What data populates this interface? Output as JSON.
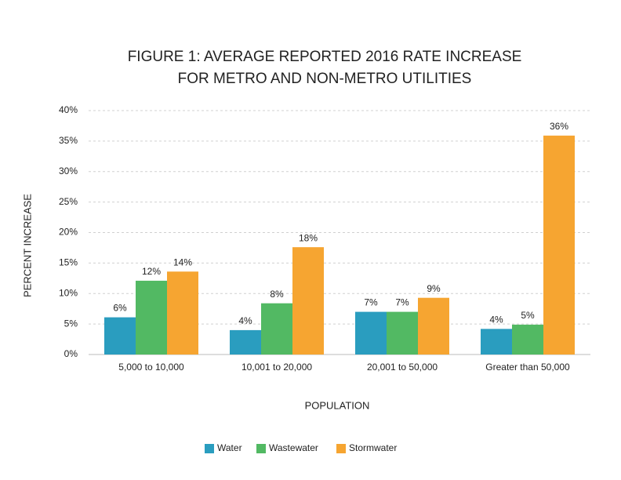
{
  "chart_data": {
    "type": "bar",
    "title": [
      "FIGURE 1: AVERAGE REPORTED 2016 RATE INCREASE",
      "FOR METRO AND NON-METRO UTILITIES"
    ],
    "x_label": "POPULATION",
    "y_label": "PERCENT INCREASE",
    "categories": [
      "5,000 to 10,000",
      "10,001 to 20,000",
      "20,001 to 50,000",
      "Greater than 50,000"
    ],
    "series": [
      {
        "name": "Water",
        "color": "#2a9dbf",
        "values": [
          6.1,
          4.0,
          7.0,
          4.2
        ],
        "value_labels": [
          "6%",
          "4%",
          "7%",
          "4%"
        ]
      },
      {
        "name": "Wastewater",
        "color": "#52b963",
        "values": [
          12.1,
          8.4,
          7.0,
          4.9
        ],
        "value_labels": [
          "12%",
          "8%",
          "7%",
          "5%"
        ]
      },
      {
        "name": "Stormwater",
        "color": "#f6a531",
        "values": [
          13.6,
          17.6,
          9.3,
          35.9
        ],
        "value_labels": [
          "14%",
          "18%",
          "9%",
          "36%"
        ]
      }
    ],
    "ylim": [
      0,
      40
    ],
    "yticks": [
      {
        "value": 0,
        "label": "0%"
      },
      {
        "value": 5,
        "label": "5%"
      },
      {
        "value": 10,
        "label": "10%"
      },
      {
        "value": 15,
        "label": "15%"
      },
      {
        "value": 20,
        "label": "20%"
      },
      {
        "value": 25,
        "label": "25%"
      },
      {
        "value": 30,
        "label": "30%"
      },
      {
        "value": 35,
        "label": "35%"
      },
      {
        "value": 40,
        "label": "40%"
      }
    ],
    "grid": true,
    "legend": "bottom"
  }
}
